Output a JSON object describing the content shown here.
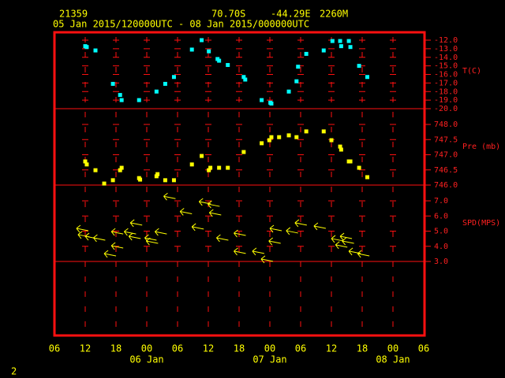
{
  "header": {
    "station": "21359",
    "latitude": "70.70S",
    "longitude": "-44.29E",
    "elevation": "2260M",
    "time_range": "05 Jan 2015/120000UTC - 08 Jan 2015/000000UTC"
  },
  "footer": {
    "page": "2"
  },
  "chart_data": {
    "type": "panels",
    "xlim": [
      6,
      78
    ],
    "xticks": [
      {
        "value": 6,
        "label": "06"
      },
      12,
      18,
      {
        "value": 24,
        "label": "00"
      },
      {
        "value": 30,
        "label": "06"
      },
      {
        "value": 36,
        "label": "12"
      },
      {
        "value": 42,
        "label": "18"
      },
      {
        "value": 48,
        "label": "00"
      },
      {
        "value": 54,
        "label": "06"
      },
      {
        "value": 60,
        "label": "12"
      },
      {
        "value": 66,
        "label": "18"
      },
      {
        "value": 72,
        "label": "00"
      },
      {
        "value": 78,
        "label": "06"
      }
    ],
    "day_labels": [
      {
        "value": 24,
        "label": "06 Jan"
      },
      {
        "value": 48,
        "label": "07 Jan"
      },
      {
        "value": 72,
        "label": "08 Jan"
      }
    ],
    "panels": [
      {
        "axis_label": "T(C)",
        "ylim": [
          -20,
          -11.08
        ],
        "yticks": [
          {
            "value": -20,
            "label": "-20.0"
          },
          {
            "value": -19,
            "label": "-19.0"
          },
          {
            "value": -18,
            "label": "-18.0"
          },
          {
            "value": -17,
            "label": "-17.0"
          },
          {
            "value": -16,
            "label": "-16.0"
          },
          {
            "value": -15,
            "label": "-15.0"
          },
          {
            "value": -14,
            "label": "-14.0"
          },
          {
            "value": -13,
            "label": "-13.0"
          },
          {
            "value": -12,
            "label": "-12.0"
          }
        ],
        "series": [
          {
            "color": "#00ffff",
            "marker": "square",
            "x": [
              12.0,
              12.3,
              14.0,
              17.4,
              18.8,
              19.1,
              22.5,
              25.9,
              27.6,
              29.3,
              32.8,
              34.7,
              36.1,
              37.8,
              38.1,
              39.8,
              42.9,
              43.2,
              46.4,
              48.1,
              48.3,
              51.7,
              53.2,
              53.5,
              55.1,
              58.5,
              60.2,
              61.7,
              61.9,
              63.4,
              63.7,
              65.4,
              67.0
            ],
            "values": [
              -12.7,
              -12.8,
              -13.2,
              -17.1,
              -18.4,
              -19.0,
              -19.0,
              -18.0,
              -17.1,
              -16.3,
              -13.1,
              -12.0,
              -13.3,
              -14.2,
              -14.4,
              -14.9,
              -16.3,
              -16.6,
              -19.0,
              -19.3,
              -19.4,
              -18.0,
              -16.8,
              -15.1,
              -13.6,
              -13.2,
              -12.1,
              -12.1,
              -12.7,
              -12.1,
              -12.8,
              -15.0,
              -16.3
            ]
          }
        ]
      },
      {
        "axis_label": "Pre (mb)",
        "ylim": [
          746,
          748.52
        ],
        "yticks": [
          {
            "value": 746,
            "label": "746.0"
          },
          746.5,
          {
            "value": 747,
            "label": "747.0"
          },
          747.5,
          {
            "value": 748,
            "label": "748.0"
          }
        ],
        "series": [
          {
            "color": "#ffff00",
            "marker": "square",
            "x": [
              12.0,
              12.3,
              14.0,
              15.7,
              17.4,
              18.8,
              19.1,
              22.5,
              22.7,
              25.9,
              26.1,
              27.6,
              29.3,
              32.8,
              34.7,
              36.1,
              36.4,
              38.1,
              39.8,
              42.9,
              46.4,
              47.9,
              48.3,
              49.8,
              51.7,
              53.2,
              55.1,
              58.5,
              60.0,
              61.7,
              61.9,
              63.4,
              63.7,
              65.4,
              67.0
            ],
            "values": [
              746.78,
              746.68,
              746.49,
              746.05,
              746.16,
              746.49,
              746.57,
              746.23,
              746.18,
              746.29,
              746.36,
              746.16,
              746.16,
              746.68,
              746.96,
              746.49,
              746.57,
              746.57,
              746.57,
              747.09,
              747.38,
              747.48,
              747.58,
              747.58,
              747.64,
              747.58,
              747.77,
              747.77,
              747.48,
              747.27,
              747.17,
              746.78,
              746.78,
              746.57,
              746.26
            ]
          }
        ]
      },
      {
        "axis_label": "SPD(MPS)",
        "ylim": [
          3,
          8.04
        ],
        "yticks": [
          {
            "value": 3,
            "label": "3.0"
          },
          {
            "value": 4,
            "label": "4.0"
          },
          {
            "value": 5,
            "label": "5.0"
          },
          {
            "value": 6,
            "label": "6.0"
          },
          {
            "value": 7,
            "label": "7.0"
          }
        ],
        "series": [
          {
            "color": "#ffff00",
            "marker": "arrow",
            "x": [
              10.3,
              10.6,
              12.0,
              13.6,
              15.7,
              17.1,
              17.1,
              19.6,
              20.5,
              20.8,
              23.6,
              23.9,
              25.6,
              27.3,
              30.5,
              32.8,
              34.2,
              35.9,
              36.2,
              37.6,
              41.0,
              41.0,
              44.6,
              46.3,
              47.8,
              48.0,
              51.2,
              52.9,
              56.6,
              60.0,
              60.8,
              61.7,
              62.1,
              63.4,
              65.1
            ],
            "values": [
              5.18,
              4.77,
              4.66,
              4.56,
              3.52,
              4.04,
              4.97,
              4.97,
              4.66,
              5.55,
              4.56,
              4.35,
              4.97,
              7.3,
              6.3,
              5.29,
              6.95,
              6.79,
              6.22,
              4.56,
              4.87,
              3.68,
              3.68,
              3.16,
              4.35,
              5.18,
              5.03,
              5.55,
              5.34,
              4.51,
              4.1,
              4.66,
              4.35,
              3.68,
              3.52
            ]
          }
        ]
      }
    ]
  }
}
